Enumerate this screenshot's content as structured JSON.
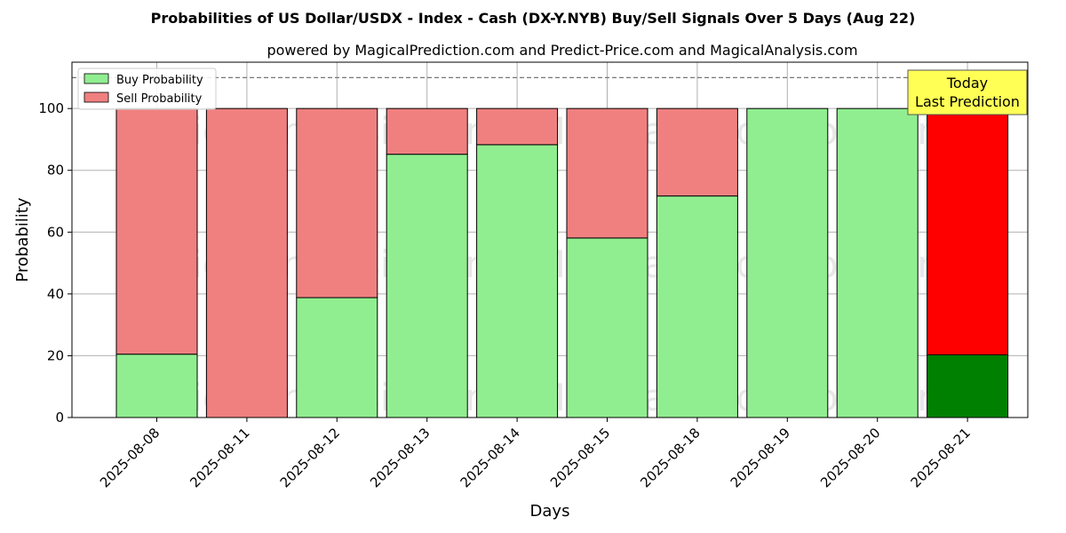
{
  "chart_data": {
    "type": "bar",
    "stacked": true,
    "title": "Probabilities of US Dollar/USDX - Index - Cash (DX-Y.NYB) Buy/Sell Signals Over 5 Days (Aug 22)",
    "subtitle": "powered by MagicalPrediction.com and Predict-Price.com and MagicalAnalysis.com",
    "xlabel": "Days",
    "ylabel": "Probability",
    "ylim": [
      0,
      115
    ],
    "yticks": [
      0,
      20,
      40,
      60,
      80,
      100
    ],
    "grid": true,
    "reference_line": 110,
    "legend_position": "top-left",
    "categories": [
      "2025-08-08",
      "2025-08-11",
      "2025-08-12",
      "2025-08-13",
      "2025-08-14",
      "2025-08-15",
      "2025-08-18",
      "2025-08-19",
      "2025-08-20",
      "2025-08-21"
    ],
    "series": [
      {
        "name": "Buy Probability",
        "color": "#90ee90",
        "values": [
          20.5,
          0,
          38.8,
          85.2,
          88.3,
          58.1,
          71.7,
          100,
          100,
          20.3
        ]
      },
      {
        "name": "Sell Probability",
        "color": "#f08080",
        "values": [
          79.5,
          100,
          61.2,
          14.8,
          11.7,
          41.9,
          28.3,
          0,
          0,
          79.7
        ]
      }
    ],
    "highlight": {
      "index": 9,
      "buy_color": "#008000",
      "sell_color": "#ff0000"
    },
    "annotation": {
      "line1": "Today",
      "line2": "Last Prediction",
      "background": "#ffff55"
    },
    "watermarks": [
      "MagicalAnalysis.com",
      "MagicalPrediction.com"
    ]
  }
}
